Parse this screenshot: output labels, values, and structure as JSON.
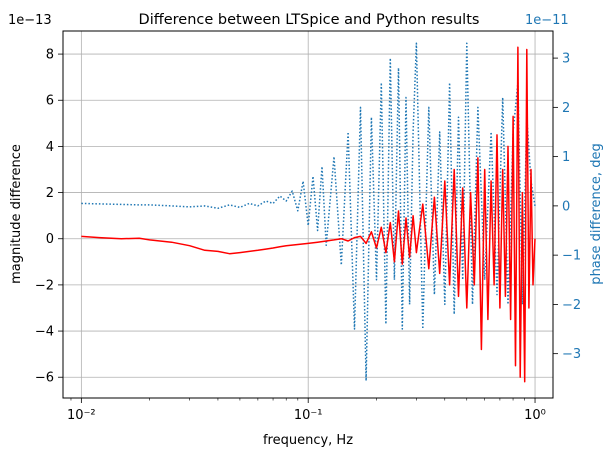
{
  "chart_data": {
    "type": "line",
    "title": "Difference between LTSpice and Python results",
    "xlabel": "frequency, Hz",
    "ylabel_left": "magnitude difference",
    "ylabel_right": "phase difference, deg",
    "x_scale": "log",
    "xlim": [
      0.0083,
      1.2
    ],
    "x_ticks": [
      {
        "value": 0.01,
        "label": "10⁻²"
      },
      {
        "value": 0.1,
        "label": "10⁻¹"
      },
      {
        "value": 1,
        "label": "10⁰"
      }
    ],
    "left_axis": {
      "offset_text": "1e−13",
      "ylim": [
        -6.9,
        9.0
      ],
      "ticks": [
        {
          "value": -6,
          "label": "−6"
        },
        {
          "value": -4,
          "label": "−4"
        },
        {
          "value": -2,
          "label": "−2"
        },
        {
          "value": 0,
          "label": "0"
        },
        {
          "value": 2,
          "label": "2"
        },
        {
          "value": 4,
          "label": "4"
        },
        {
          "value": 6,
          "label": "6"
        },
        {
          "value": 8,
          "label": "8"
        }
      ]
    },
    "right_axis": {
      "offset_text": "1e−11",
      "ylim": [
        -3.9,
        3.55
      ],
      "color": "#1f77b4",
      "ticks": [
        {
          "value": -3,
          "label": "−3"
        },
        {
          "value": -2,
          "label": "−2"
        },
        {
          "value": -1,
          "label": "−1"
        },
        {
          "value": 0,
          "label": "0"
        },
        {
          "value": 1,
          "label": "1"
        },
        {
          "value": 2,
          "label": "2"
        },
        {
          "value": 3,
          "label": "3"
        }
      ]
    },
    "grid": true,
    "series": [
      {
        "axis": "left",
        "color": "#ff0000",
        "style": "solid",
        "x": [
          0.01,
          0.012,
          0.015,
          0.018,
          0.02,
          0.025,
          0.03,
          0.035,
          0.04,
          0.045,
          0.05,
          0.055,
          0.06,
          0.065,
          0.07,
          0.075,
          0.08,
          0.09,
          0.1,
          0.11,
          0.12,
          0.13,
          0.14,
          0.15,
          0.16,
          0.17,
          0.18,
          0.19,
          0.2,
          0.21,
          0.22,
          0.23,
          0.24,
          0.25,
          0.26,
          0.27,
          0.28,
          0.29,
          0.3,
          0.32,
          0.34,
          0.36,
          0.38,
          0.4,
          0.42,
          0.44,
          0.46,
          0.48,
          0.5,
          0.52,
          0.54,
          0.56,
          0.58,
          0.6,
          0.62,
          0.64,
          0.66,
          0.68,
          0.7,
          0.72,
          0.74,
          0.76,
          0.78,
          0.8,
          0.82,
          0.84,
          0.86,
          0.88,
          0.9,
          0.92,
          0.94,
          0.96,
          0.98,
          1.0
        ],
        "y": [
          0.1,
          0.05,
          0.0,
          0.02,
          -0.05,
          -0.15,
          -0.3,
          -0.5,
          -0.55,
          -0.65,
          -0.6,
          -0.55,
          -0.5,
          -0.45,
          -0.4,
          -0.35,
          -0.3,
          -0.25,
          -0.2,
          -0.15,
          -0.1,
          -0.05,
          0.0,
          -0.1,
          0.05,
          0.1,
          -0.2,
          0.3,
          -0.4,
          0.5,
          -0.6,
          0.7,
          -1.0,
          1.2,
          -1.1,
          0.9,
          -0.8,
          1.0,
          -0.6,
          1.5,
          -1.3,
          1.8,
          -1.5,
          2.5,
          -2.0,
          3.0,
          -2.5,
          2.2,
          -3.0,
          2.0,
          -2.0,
          3.5,
          -4.8,
          3.0,
          -3.5,
          2.5,
          -2.0,
          4.5,
          -3.0,
          3.0,
          -2.5,
          4.0,
          -3.5,
          5.3,
          -5.5,
          8.3,
          -6.0,
          2.0,
          -6.2,
          8.2,
          -3.0,
          3.0,
          -2.0,
          0.0
        ]
      },
      {
        "axis": "right",
        "color": "#1f77b4",
        "style": "dotted",
        "x": [
          0.01,
          0.012,
          0.015,
          0.018,
          0.02,
          0.025,
          0.03,
          0.035,
          0.04,
          0.045,
          0.05,
          0.055,
          0.06,
          0.065,
          0.07,
          0.075,
          0.08,
          0.085,
          0.09,
          0.095,
          0.1,
          0.105,
          0.11,
          0.115,
          0.12,
          0.13,
          0.14,
          0.15,
          0.16,
          0.17,
          0.18,
          0.19,
          0.2,
          0.21,
          0.22,
          0.23,
          0.24,
          0.25,
          0.26,
          0.27,
          0.28,
          0.29,
          0.3,
          0.32,
          0.34,
          0.36,
          0.38,
          0.4,
          0.42,
          0.44,
          0.46,
          0.48,
          0.5,
          0.53,
          0.56,
          0.6,
          0.64,
          0.68,
          0.72,
          0.76,
          0.8,
          0.84,
          0.88,
          0.92,
          0.96,
          1.0
        ],
        "y": [
          0.05,
          0.04,
          0.03,
          0.02,
          0.02,
          0.0,
          -0.02,
          0.0,
          -0.05,
          0.02,
          -0.03,
          0.05,
          0.0,
          0.1,
          0.05,
          0.2,
          0.1,
          0.3,
          -0.1,
          0.5,
          -0.4,
          0.6,
          -0.5,
          0.8,
          -0.8,
          1.0,
          -1.2,
          1.5,
          -2.5,
          2.0,
          -3.55,
          1.8,
          -1.5,
          2.5,
          -2.4,
          3.0,
          -1.5,
          2.8,
          -2.5,
          2.2,
          -2.0,
          1.5,
          3.3,
          -2.5,
          2.0,
          -1.8,
          1.5,
          -2.0,
          2.5,
          -2.2,
          1.8,
          -1.5,
          3.3,
          -2.0,
          2.0,
          -1.5,
          1.5,
          -1.8,
          2.2,
          -2.0,
          1.5,
          2.5,
          -2.0,
          1.8,
          0.5,
          0.0
        ]
      }
    ]
  }
}
